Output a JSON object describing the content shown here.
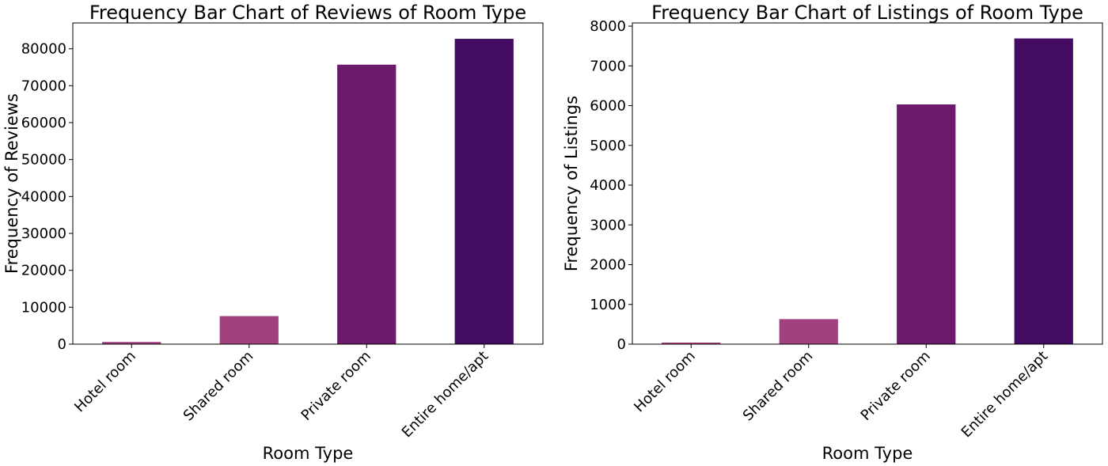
{
  "colors": {
    "background": "#ffffff",
    "axis": "#000000",
    "bar_shades": [
      "#a1427f",
      "#a1427f",
      "#6b1a6c",
      "#440b62"
    ]
  },
  "chart_data": [
    {
      "type": "bar",
      "title": "Frequency Bar Chart of Reviews of Room Type",
      "xlabel": "Room Type",
      "ylabel": "Frequency of Reviews",
      "categories": [
        "Hotel room",
        "Shared room",
        "Private room",
        "Entire home/apt"
      ],
      "values": [
        600,
        7600,
        75700,
        82700
      ],
      "ylim": [
        0,
        87000
      ],
      "yticks": [
        0,
        10000,
        20000,
        30000,
        40000,
        50000,
        60000,
        70000,
        80000
      ],
      "grid": false,
      "legend": "none"
    },
    {
      "type": "bar",
      "title": "Frequency Bar Chart of Listings of Room Type",
      "xlabel": "Room Type",
      "ylabel": "Frequency of Listings",
      "categories": [
        "Hotel room",
        "Shared room",
        "Private room",
        "Entire home/apt"
      ],
      "values": [
        40,
        630,
        6030,
        7690
      ],
      "ylim": [
        0,
        8080
      ],
      "yticks": [
        0,
        1000,
        2000,
        3000,
        4000,
        5000,
        6000,
        7000,
        8000
      ],
      "grid": false,
      "legend": "none"
    }
  ]
}
